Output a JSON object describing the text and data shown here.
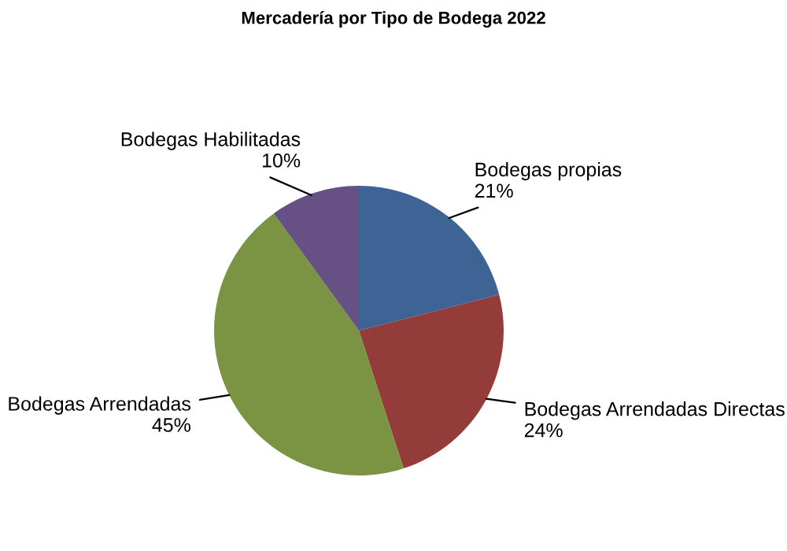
{
  "chart_data": {
    "type": "pie",
    "title": "Mercadería por Tipo de Bodega 2022",
    "categories": [
      "Bodegas propias",
      "Bodegas Arrendadas Directas",
      "Bodegas Arrendadas",
      "Bodegas Habilitadas"
    ],
    "values": [
      21,
      24,
      45,
      10
    ],
    "value_labels": [
      "21%",
      "24%",
      "45%",
      "10%"
    ],
    "colors": [
      "#3e6496",
      "#943c3a",
      "#7a9444",
      "#665084"
    ],
    "legend": false
  }
}
